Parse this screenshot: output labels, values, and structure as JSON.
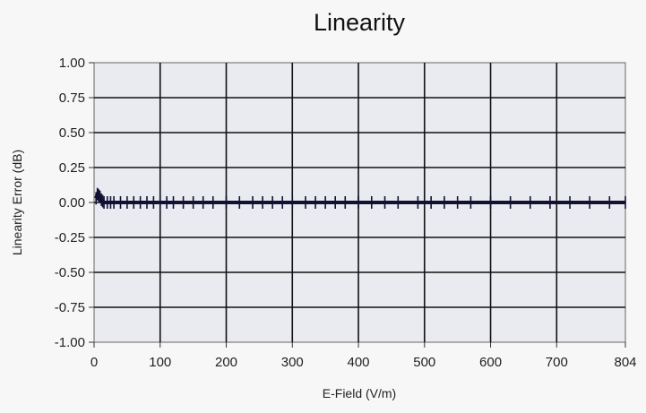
{
  "chart_data": {
    "type": "line",
    "title": "Linearity",
    "xlabel": "E-Field (V/m)",
    "ylabel": "Linearity Error (dB)",
    "xlim": [
      0,
      804
    ],
    "ylim": [
      -1.0,
      1.0
    ],
    "x_ticks": [
      0,
      100,
      200,
      300,
      400,
      500,
      600,
      700,
      804
    ],
    "y_ticks": [
      1.0,
      0.75,
      0.5,
      0.25,
      0.0,
      -0.25,
      -0.5,
      -0.75,
      -1.0
    ],
    "x_tick_labels": [
      "0",
      "100",
      "200",
      "300",
      "400",
      "500",
      "600",
      "700",
      "804"
    ],
    "y_tick_labels": [
      "1.00",
      "0.75",
      "0.50",
      "0.25",
      "0.00",
      "-0.25",
      "-0.50",
      "-0.75",
      "-1.00"
    ],
    "grid": true,
    "series": [
      {
        "x": [
          3,
          5,
          7,
          9,
          11,
          13,
          15,
          20,
          25,
          30,
          40,
          50,
          60,
          70,
          80,
          90,
          100,
          110,
          120,
          135,
          150,
          165,
          180,
          200,
          220,
          240,
          255,
          270,
          285,
          300,
          320,
          335,
          350,
          365,
          380,
          400,
          420,
          440,
          460,
          490,
          510,
          530,
          550,
          570,
          600,
          630,
          660,
          690,
          720,
          750,
          780,
          804
        ],
        "y": [
          0.03,
          0.06,
          0.05,
          0.04,
          0.02,
          0.01,
          0.0,
          0.0,
          0.0,
          0.0,
          0.0,
          0.0,
          0.0,
          0.0,
          0.0,
          0.0,
          0.0,
          0.0,
          0.0,
          0.0,
          0.0,
          0.0,
          0.0,
          0.0,
          0.0,
          0.0,
          0.0,
          0.0,
          0.0,
          0.0,
          0.0,
          0.0,
          0.0,
          0.0,
          0.0,
          0.0,
          0.0,
          0.0,
          0.0,
          0.0,
          0.0,
          0.0,
          0.0,
          0.0,
          0.0,
          0.0,
          0.0,
          0.0,
          0.0,
          0.0,
          0.0,
          0.0
        ]
      }
    ],
    "colors": {
      "plot_background": "#eaeaf1",
      "grid": "#111111",
      "series": "#111133"
    }
  }
}
